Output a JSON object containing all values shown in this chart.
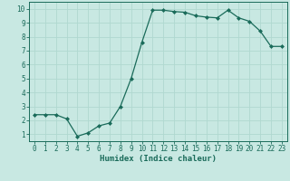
{
  "x": [
    0,
    1,
    2,
    3,
    4,
    5,
    6,
    7,
    8,
    9,
    10,
    11,
    12,
    13,
    14,
    15,
    16,
    17,
    18,
    19,
    20,
    21,
    22,
    23
  ],
  "y": [
    2.4,
    2.4,
    2.4,
    2.1,
    0.85,
    1.1,
    1.6,
    1.8,
    3.0,
    5.0,
    7.6,
    9.9,
    9.9,
    9.8,
    9.75,
    9.5,
    9.4,
    9.35,
    9.9,
    9.35,
    9.1,
    8.4,
    7.3,
    7.3
  ],
  "line_color": "#1a6b5a",
  "bg_color": "#c8e8e2",
  "grid_color": "#b0d8d0",
  "xlabel": "Humidex (Indice chaleur)",
  "xlim": [
    -0.5,
    23.5
  ],
  "ylim": [
    0.5,
    10.5
  ],
  "yticks": [
    1,
    2,
    3,
    4,
    5,
    6,
    7,
    8,
    9,
    10
  ],
  "xticks": [
    0,
    1,
    2,
    3,
    4,
    5,
    6,
    7,
    8,
    9,
    10,
    11,
    12,
    13,
    14,
    15,
    16,
    17,
    18,
    19,
    20,
    21,
    22,
    23
  ],
  "ytick_labels": [
    "1",
    "2",
    "3",
    "4",
    "5",
    "6",
    "7",
    "8",
    "9",
    "10"
  ],
  "xtick_labels": [
    "0",
    "1",
    "2",
    "3",
    "4",
    "5",
    "6",
    "7",
    "8",
    "9",
    "10",
    "11",
    "12",
    "13",
    "14",
    "15",
    "16",
    "17",
    "18",
    "19",
    "20",
    "21",
    "22",
    "23"
  ],
  "tick_fontsize": 5.5,
  "xlabel_fontsize": 6.5,
  "marker": "D",
  "markersize": 2.0,
  "linewidth": 0.9
}
